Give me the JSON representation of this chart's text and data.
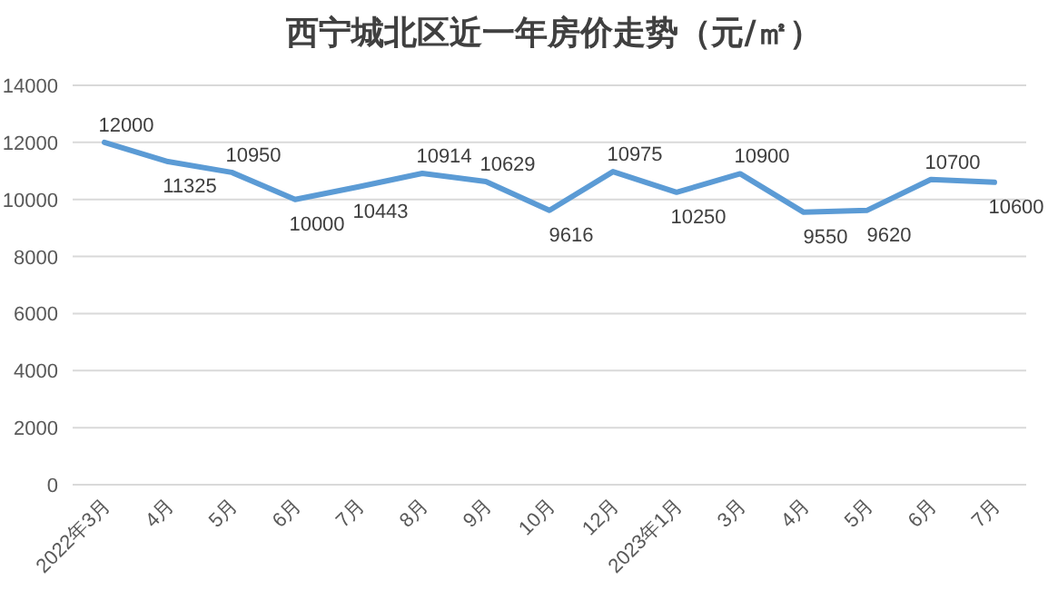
{
  "chart_data": {
    "type": "line",
    "title": "西宁城北区近一年房价走势（元/㎡）",
    "categories": [
      "2022年3月",
      "4月",
      "5月",
      "6月",
      "7月",
      "8月",
      "9月",
      "10月",
      "12月",
      "2023年1月",
      "3月",
      "4月",
      "5月",
      "6月",
      "7月"
    ],
    "series": [
      {
        "color": "#5b9bd5",
        "values": [
          12000,
          11325,
          10950,
          10000,
          10443,
          10914,
          10629,
          9616,
          10975,
          10250,
          10900,
          9550,
          9620,
          10700,
          10600
        ]
      }
    ],
    "ylim": [
      0,
      14000
    ],
    "yticks": [
      0,
      2000,
      4000,
      6000,
      8000,
      10000,
      12000,
      14000
    ],
    "grid": "y",
    "data_labels": true,
    "marker": "none",
    "line_style": "solid"
  }
}
